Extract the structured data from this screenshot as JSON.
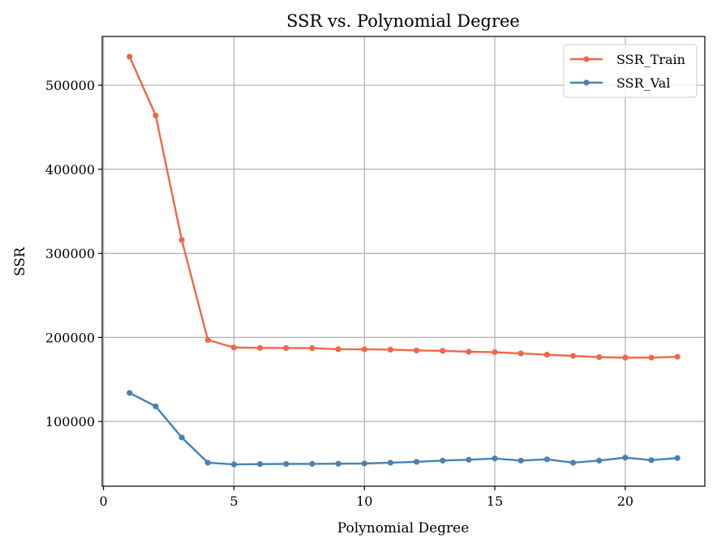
{
  "chart_data": {
    "type": "line",
    "title": "SSR vs. Polynomial Degree",
    "xlabel": "Polynomial Degree",
    "ylabel": "SSR",
    "xlim": [
      -0.05,
      23.05
    ],
    "ylim": [
      23000,
      558000
    ],
    "xticks": [
      0,
      5,
      10,
      15,
      20
    ],
    "yticks": [
      100000,
      200000,
      300000,
      400000,
      500000
    ],
    "grid": true,
    "legend_position": "top-right",
    "x": [
      1,
      2,
      3,
      4,
      5,
      6,
      7,
      8,
      9,
      10,
      11,
      12,
      13,
      14,
      15,
      16,
      17,
      18,
      19,
      20,
      21,
      22
    ],
    "series": [
      {
        "name": "SSR_Train",
        "color": "#f26649",
        "values": [
          534000,
          464000,
          316000,
          197000,
          188000,
          187500,
          187400,
          187300,
          186000,
          185800,
          185500,
          184500,
          184000,
          183000,
          182500,
          181000,
          179500,
          178000,
          176500,
          176000,
          176000,
          177000
        ]
      },
      {
        "name": "SSR_Val",
        "color": "#4682b4",
        "values": [
          134000,
          118000,
          81000,
          51000,
          49000,
          49300,
          49500,
          49600,
          49800,
          50000,
          51000,
          52000,
          53500,
          54500,
          56000,
          53500,
          55000,
          51000,
          53500,
          57000,
          54000,
          56500
        ]
      }
    ]
  }
}
